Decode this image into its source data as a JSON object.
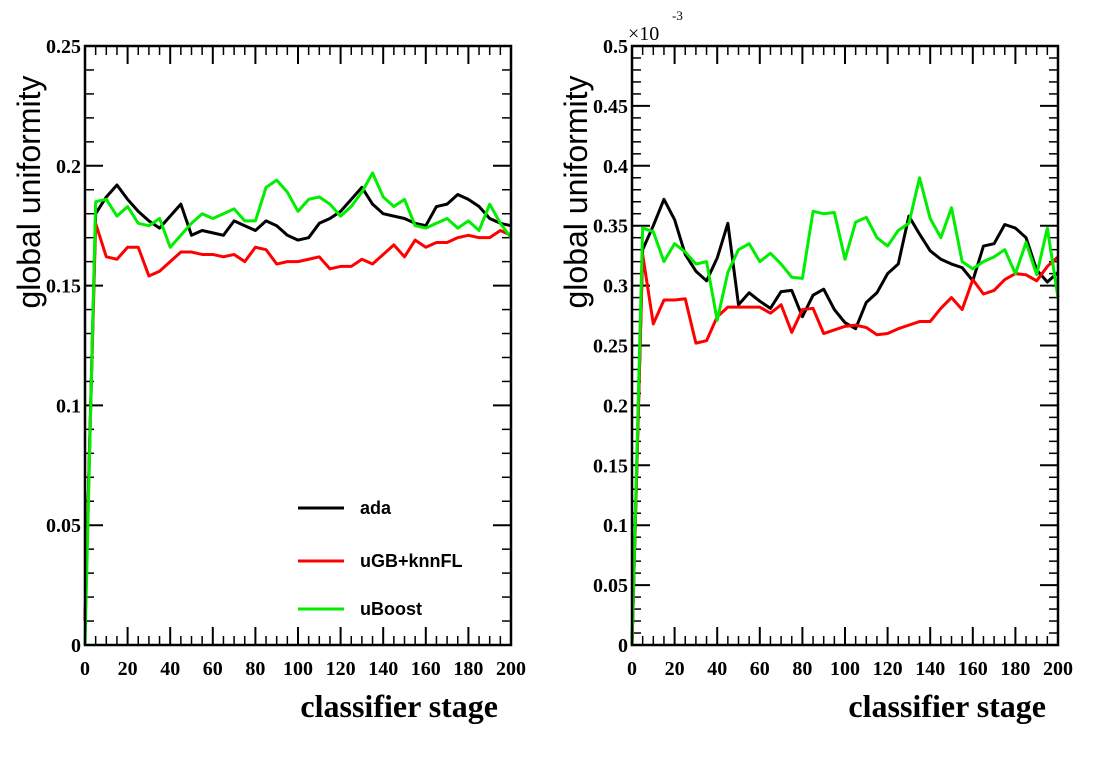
{
  "chart_data": [
    {
      "type": "line",
      "xlabel": "classifier stage",
      "ylabel": "global uniformity",
      "xlim": [
        0,
        200
      ],
      "ylim": [
        0,
        0.25
      ],
      "x_ticks": [
        "0",
        "20",
        "40",
        "60",
        "80",
        "100",
        "120",
        "140",
        "160",
        "180",
        "200"
      ],
      "y_ticks": [
        "0",
        "0.05",
        "0.1",
        "0.15",
        "0.2",
        "0.25"
      ],
      "legend": {
        "placement": "bottom-right",
        "entries": [
          "ada",
          "uGB+knnFL",
          "uBoost"
        ]
      },
      "x": [
        0,
        5,
        10,
        15,
        20,
        25,
        30,
        35,
        40,
        45,
        50,
        55,
        60,
        65,
        70,
        75,
        80,
        85,
        90,
        95,
        100,
        105,
        110,
        115,
        120,
        125,
        130,
        135,
        140,
        145,
        150,
        155,
        160,
        165,
        170,
        175,
        180,
        185,
        190,
        195,
        200
      ],
      "series": [
        {
          "name": "ada",
          "color": "#000000",
          "values": [
            0.01,
            0.18,
            0.187,
            0.192,
            0.186,
            0.181,
            0.177,
            0.174,
            0.179,
            0.184,
            0.171,
            0.173,
            0.172,
            0.171,
            0.177,
            0.175,
            0.173,
            0.177,
            0.175,
            0.171,
            0.169,
            0.17,
            0.176,
            0.178,
            0.181,
            0.186,
            0.191,
            0.184,
            0.18,
            0.179,
            0.178,
            0.176,
            0.175,
            0.183,
            0.184,
            0.188,
            0.186,
            0.183,
            0.178,
            0.176,
            0.175
          ]
        },
        {
          "name": "uGB+knnFL",
          "color": "#ff0000",
          "values": [
            0.01,
            0.176,
            0.162,
            0.161,
            0.166,
            0.166,
            0.154,
            0.156,
            0.16,
            0.164,
            0.164,
            0.163,
            0.163,
            0.162,
            0.163,
            0.16,
            0.166,
            0.165,
            0.159,
            0.16,
            0.16,
            0.161,
            0.162,
            0.157,
            0.158,
            0.158,
            0.161,
            0.159,
            0.163,
            0.167,
            0.162,
            0.169,
            0.166,
            0.168,
            0.168,
            0.17,
            0.171,
            0.17,
            0.17,
            0.173,
            0.171
          ]
        },
        {
          "name": "uBoost",
          "color": "#00ee00",
          "values": [
            0.0,
            0.185,
            0.186,
            0.179,
            0.183,
            0.176,
            0.175,
            0.178,
            0.166,
            0.171,
            0.176,
            0.18,
            0.178,
            0.18,
            0.182,
            0.177,
            0.177,
            0.191,
            0.194,
            0.189,
            0.181,
            0.186,
            0.187,
            0.184,
            0.179,
            0.183,
            0.189,
            0.197,
            0.187,
            0.183,
            0.186,
            0.175,
            0.174,
            0.176,
            0.178,
            0.174,
            0.177,
            0.173,
            0.184,
            0.176,
            0.17
          ]
        }
      ]
    },
    {
      "type": "line",
      "xlabel": "classifier stage",
      "ylabel": "global uniformity",
      "exponent_label": "×10",
      "exponent_power": "-3",
      "xlim": [
        0,
        200
      ],
      "ylim": [
        0,
        0.5
      ],
      "x_ticks": [
        "0",
        "20",
        "40",
        "60",
        "80",
        "100",
        "120",
        "140",
        "160",
        "180",
        "200"
      ],
      "y_ticks": [
        "0",
        "0.05",
        "0.1",
        "0.15",
        "0.2",
        "0.25",
        "0.3",
        "0.35",
        "0.4",
        "0.45",
        "0.5"
      ],
      "x": [
        0,
        5,
        10,
        15,
        20,
        25,
        30,
        35,
        40,
        45,
        50,
        55,
        60,
        65,
        70,
        75,
        80,
        85,
        90,
        95,
        100,
        105,
        110,
        115,
        120,
        125,
        130,
        135,
        140,
        145,
        150,
        155,
        160,
        165,
        170,
        175,
        180,
        185,
        190,
        195,
        200
      ],
      "series": [
        {
          "name": "ada",
          "color": "#000000",
          "values": [
            0.0,
            0.33,
            0.35,
            0.372,
            0.355,
            0.326,
            0.312,
            0.304,
            0.323,
            0.352,
            0.284,
            0.294,
            0.287,
            0.281,
            0.295,
            0.296,
            0.274,
            0.292,
            0.297,
            0.28,
            0.269,
            0.264,
            0.286,
            0.294,
            0.31,
            0.318,
            0.358,
            0.343,
            0.329,
            0.322,
            0.318,
            0.315,
            0.304,
            0.333,
            0.335,
            0.351,
            0.348,
            0.34,
            0.313,
            0.303,
            0.311
          ]
        },
        {
          "name": "uGB+knnFL",
          "color": "#ff0000",
          "values": [
            0.0,
            0.326,
            0.268,
            0.288,
            0.288,
            0.289,
            0.252,
            0.254,
            0.274,
            0.282,
            0.282,
            0.282,
            0.282,
            0.277,
            0.284,
            0.261,
            0.28,
            0.281,
            0.26,
            0.263,
            0.266,
            0.267,
            0.265,
            0.259,
            0.26,
            0.264,
            0.267,
            0.27,
            0.27,
            0.281,
            0.29,
            0.28,
            0.305,
            0.293,
            0.296,
            0.305,
            0.31,
            0.309,
            0.304,
            0.316,
            0.324
          ]
        },
        {
          "name": "uBoost",
          "color": "#00ee00",
          "values": [
            0.0,
            0.348,
            0.345,
            0.32,
            0.335,
            0.328,
            0.318,
            0.32,
            0.271,
            0.311,
            0.33,
            0.335,
            0.32,
            0.327,
            0.318,
            0.307,
            0.306,
            0.362,
            0.36,
            0.361,
            0.322,
            0.353,
            0.357,
            0.34,
            0.333,
            0.346,
            0.352,
            0.39,
            0.356,
            0.34,
            0.365,
            0.32,
            0.314,
            0.32,
            0.324,
            0.33,
            0.31,
            0.336,
            0.309,
            0.348,
            0.29
          ]
        }
      ]
    }
  ]
}
